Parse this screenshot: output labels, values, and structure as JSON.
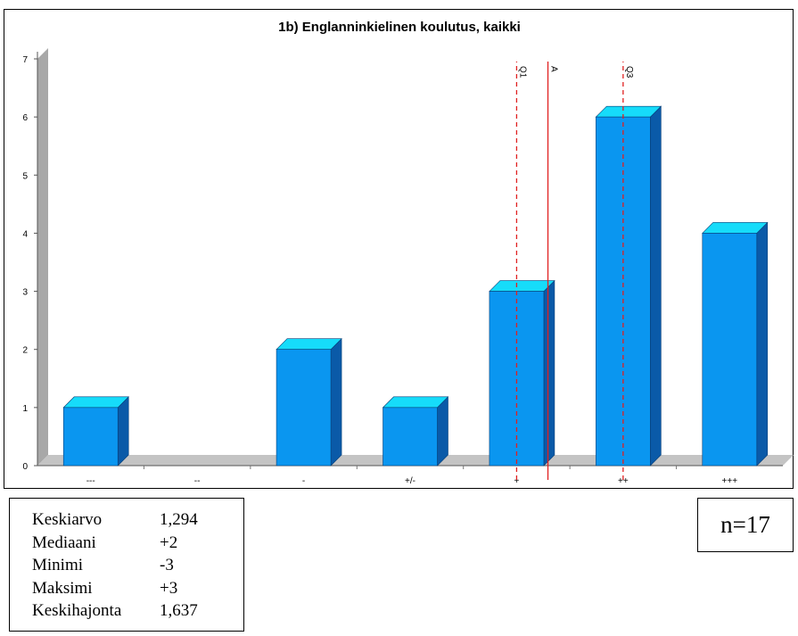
{
  "chart_data": {
    "type": "bar",
    "title": "1b) Englanninkielinen koulutus, kaikki",
    "categories": [
      "---",
      "--",
      "-",
      "+/-",
      "+",
      "++",
      "+++"
    ],
    "values": [
      1,
      0,
      2,
      1,
      3,
      6,
      4
    ],
    "ylim": [
      0,
      7
    ],
    "yticks": [
      "0",
      "1",
      "2",
      "3",
      "4",
      "5",
      "6",
      "7"
    ],
    "xlabel": "",
    "ylabel": "",
    "grid": false,
    "reference_lines": [
      {
        "label": "Q1",
        "x": 1.0,
        "style": "dashed",
        "color": "#e02020"
      },
      {
        "label": "A",
        "x": 1.294,
        "style": "solid",
        "color": "#e02020"
      },
      {
        "label": "Q3",
        "x": 2.0,
        "style": "dashed",
        "color": "#e02020"
      }
    ],
    "colors": {
      "bar_front": "#0a96f0",
      "bar_top": "#16dcfa",
      "bar_side": "#0a5aa8",
      "wall": "#a8a8a8"
    }
  },
  "stats": [
    {
      "label": "Keskiarvo",
      "value": "1,294"
    },
    {
      "label": "Mediaani",
      "value": "+2"
    },
    {
      "label": "Minimi",
      "value": "-3"
    },
    {
      "label": "Maksimi",
      "value": "+3"
    },
    {
      "label": "Keskihajonta",
      "value": "1,637"
    }
  ],
  "n_label": "n=17"
}
